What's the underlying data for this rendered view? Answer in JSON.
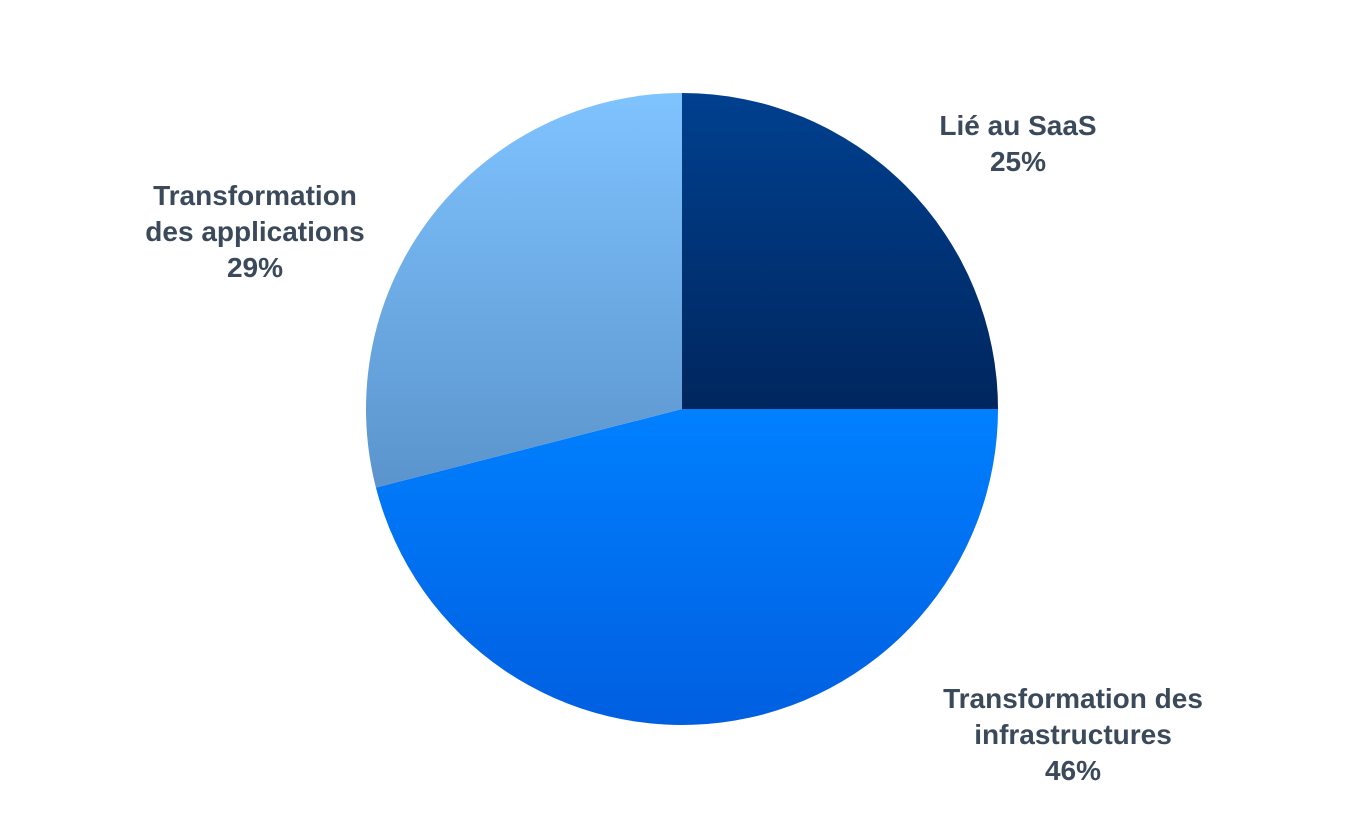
{
  "chart_data": {
    "type": "pie",
    "title": "",
    "slices": [
      {
        "name_lines": [
          "Lié au SaaS"
        ],
        "value": 25,
        "value_label": "25%",
        "color_top": "#00408f",
        "color_bottom": "#00265e"
      },
      {
        "name_lines": [
          "Transformation des",
          "infrastructures"
        ],
        "value": 46,
        "value_label": "46%",
        "color_top": "#0080ff",
        "color_bottom": "#005fe0"
      },
      {
        "name_lines": [
          "Transformation",
          "des applications"
        ],
        "value": 29,
        "value_label": "29%",
        "color_top": "#7fc3ff",
        "color_bottom": "#5b94cc"
      }
    ],
    "start_angle_deg": 0,
    "direction": "clockwise",
    "legend": "none",
    "label_color": "#3b4a5a"
  }
}
